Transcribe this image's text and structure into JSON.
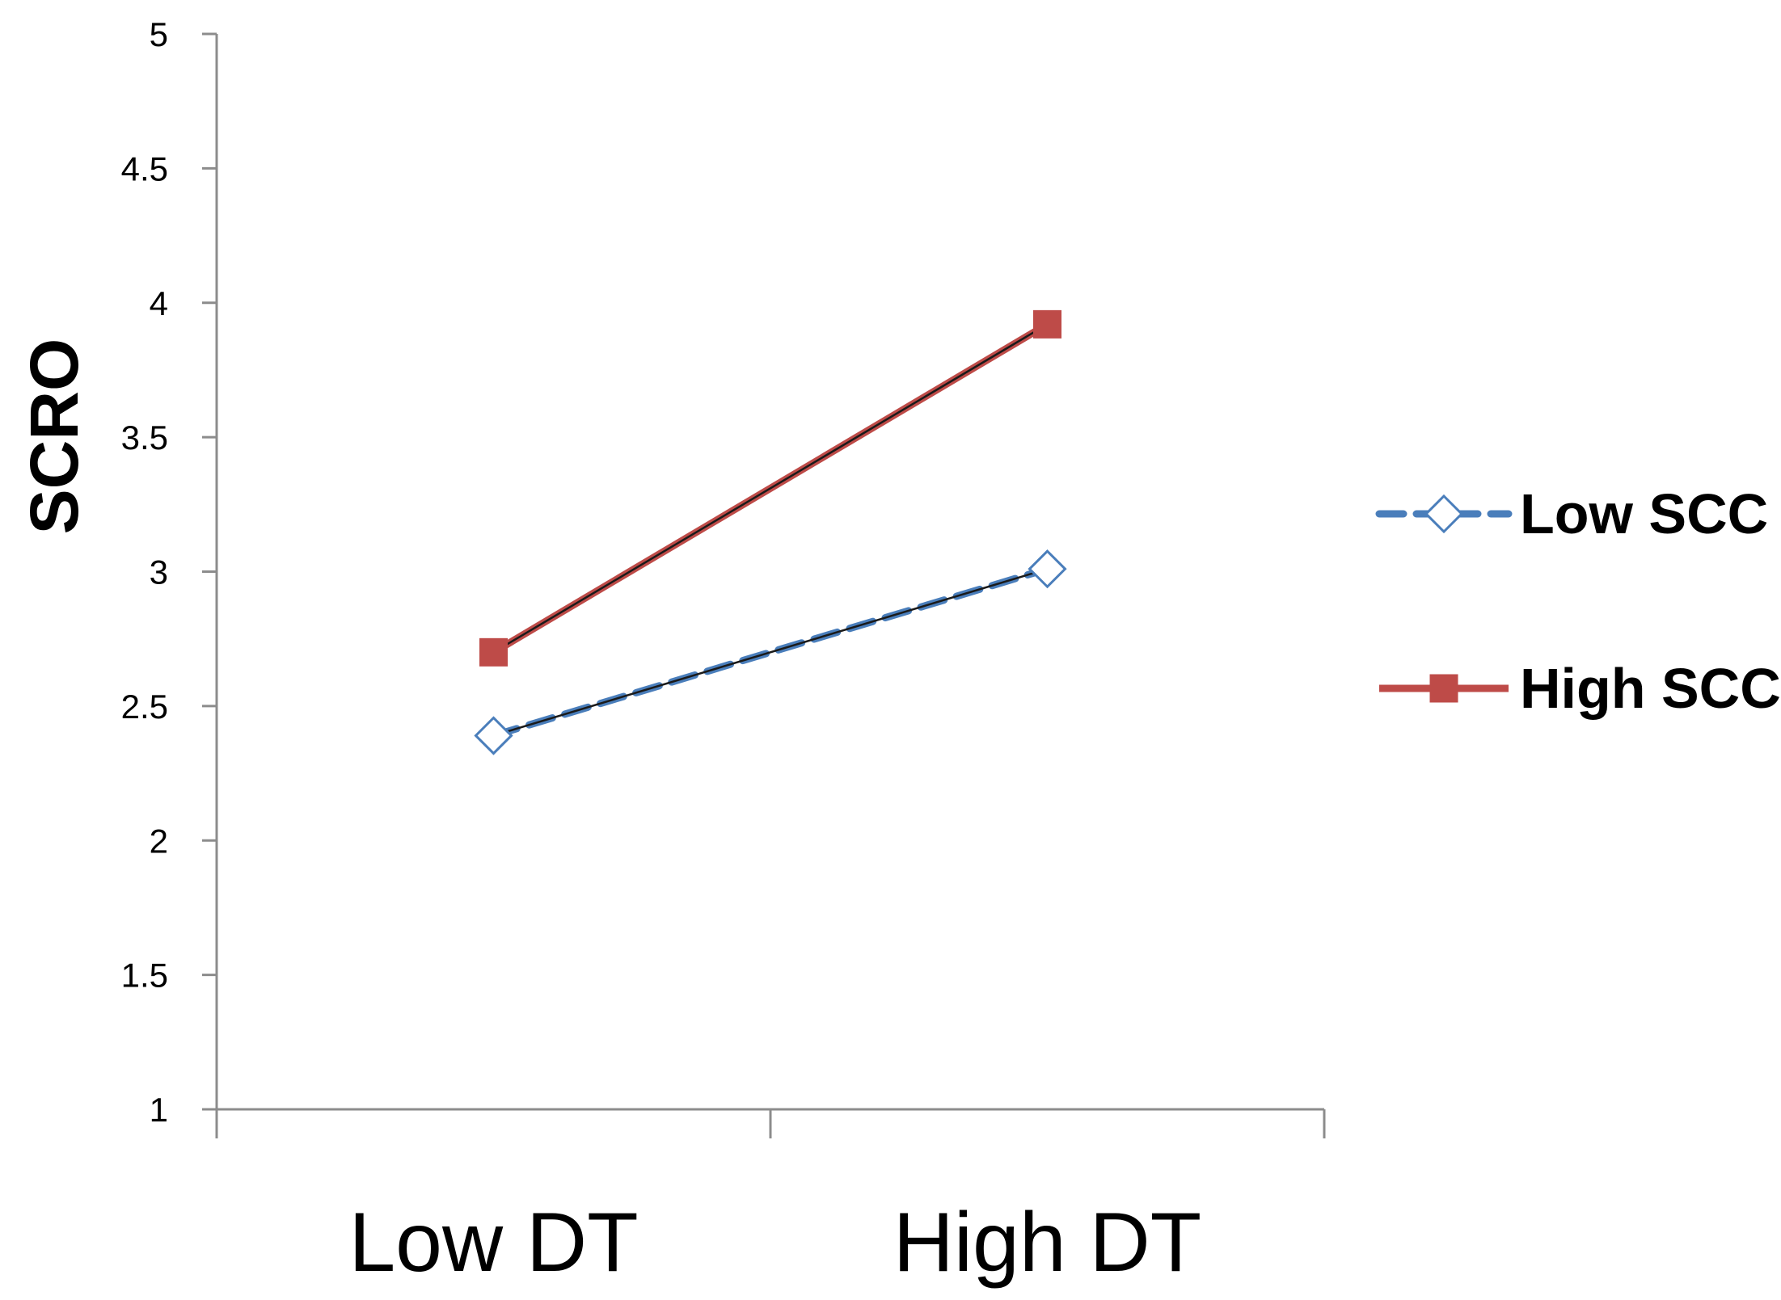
{
  "chart_data": {
    "type": "line",
    "categories": [
      "Low DT",
      "High DT"
    ],
    "series": [
      {
        "name": "Low SCC",
        "values": [
          2.39,
          3.01
        ],
        "color": "#4a7ebb",
        "line_style": "dashed",
        "marker": "diamond-open"
      },
      {
        "name": "High SCC",
        "values": [
          2.7,
          3.92
        ],
        "color": "#be4b48",
        "line_style": "solid",
        "marker": "square-filled"
      }
    ],
    "title": "",
    "xlabel": "",
    "ylabel": "SCRO",
    "ylim": [
      1,
      5
    ],
    "yticks": [
      1,
      1.5,
      2,
      2.5,
      3,
      3.5,
      4,
      4.5,
      5
    ],
    "ytick_labels": [
      "1",
      "1.5",
      "2",
      "2.5",
      "3",
      "3.5",
      "4",
      "4.5",
      "5"
    ],
    "grid": false,
    "legend_position": "right"
  }
}
